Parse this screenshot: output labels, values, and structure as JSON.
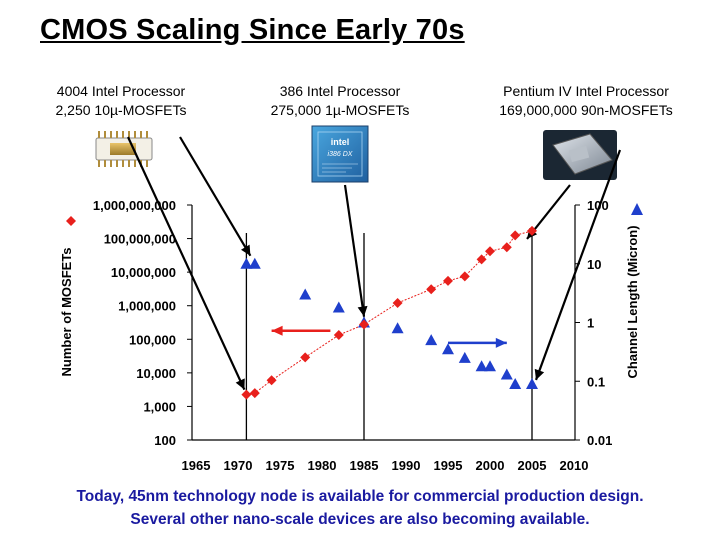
{
  "slide": {
    "title": "CMOS Scaling Since Early 70s",
    "processors": [
      {
        "name": "4004 Intel Processor",
        "detail": "2,250 10µ-MOSFETs"
      },
      {
        "name": "386 Intel Processor",
        "detail": "275,000 1µ-MOSFETs"
      },
      {
        "name": "Pentium IV Intel Processor",
        "detail": "169,000,000 90n-MOSFETs"
      }
    ],
    "chip_386_text": [
      "intel",
      "i386 DX"
    ],
    "footer": [
      "Today, 45nm technology node is available for commercial production design.",
      "Several other nano-scale devices are also becoming available."
    ]
  },
  "colors": {
    "transistors": "#e8201c",
    "channel": "#1f3fcc",
    "footer": "#1a1aa0",
    "arrow_red": "#e8201c",
    "arrow_blue": "#1f3fcc"
  },
  "chart_data": {
    "type": "scatter",
    "title": "",
    "xlabel": "",
    "ylabel_left": "Number of MOSFETs",
    "ylabel_right": "Channel Length (Micron)",
    "xlim": [
      1965,
      2010
    ],
    "x_ticks": [
      1965,
      1970,
      1975,
      1980,
      1985,
      1990,
      1995,
      2000,
      2005,
      2010
    ],
    "y_left_range": [
      100,
      1000000000
    ],
    "y_left_ticks": [
      "100",
      "1,000",
      "10,000",
      "100,000",
      "1,000,000",
      "10,000,000",
      "100,000,000",
      "1,000,000,000"
    ],
    "y_right_range": [
      0.01,
      100
    ],
    "y_right_ticks": [
      "0.01",
      "0.1",
      "1",
      "10",
      "100"
    ],
    "grid": false,
    "series": [
      {
        "name": "Number of MOSFETs",
        "axis": "left",
        "marker": "diamond",
        "x": [
          1971,
          1972,
          1974,
          1978,
          1982,
          1985,
          1989,
          1993,
          1995,
          1997,
          1999,
          2000,
          2002,
          2003,
          2005
        ],
        "y": [
          2250,
          2500,
          6000,
          29000,
          134000,
          275000,
          1200000,
          3100000,
          5500000,
          7500000,
          24000000,
          42000000,
          55000000,
          125000000,
          169000000
        ]
      },
      {
        "name": "Channel Length (Micron)",
        "axis": "right",
        "marker": "triangle",
        "x": [
          1971,
          1972,
          1978,
          1982,
          1985,
          1989,
          1993,
          1995,
          1997,
          1999,
          2000,
          2002,
          2003,
          2005
        ],
        "y": [
          10,
          10,
          3,
          1.8,
          1.0,
          0.8,
          0.5,
          0.35,
          0.25,
          0.18,
          0.18,
          0.13,
          0.09,
          0.09
        ]
      }
    ],
    "vertical_markers_years": [
      1971,
      1985,
      2005
    ],
    "range_arrows": [
      {
        "axis": "left",
        "color": "red",
        "from_year": 1981,
        "to_year": 1974
      },
      {
        "axis": "right",
        "color": "blue",
        "from_year": 1995,
        "to_year": 2002
      }
    ]
  }
}
